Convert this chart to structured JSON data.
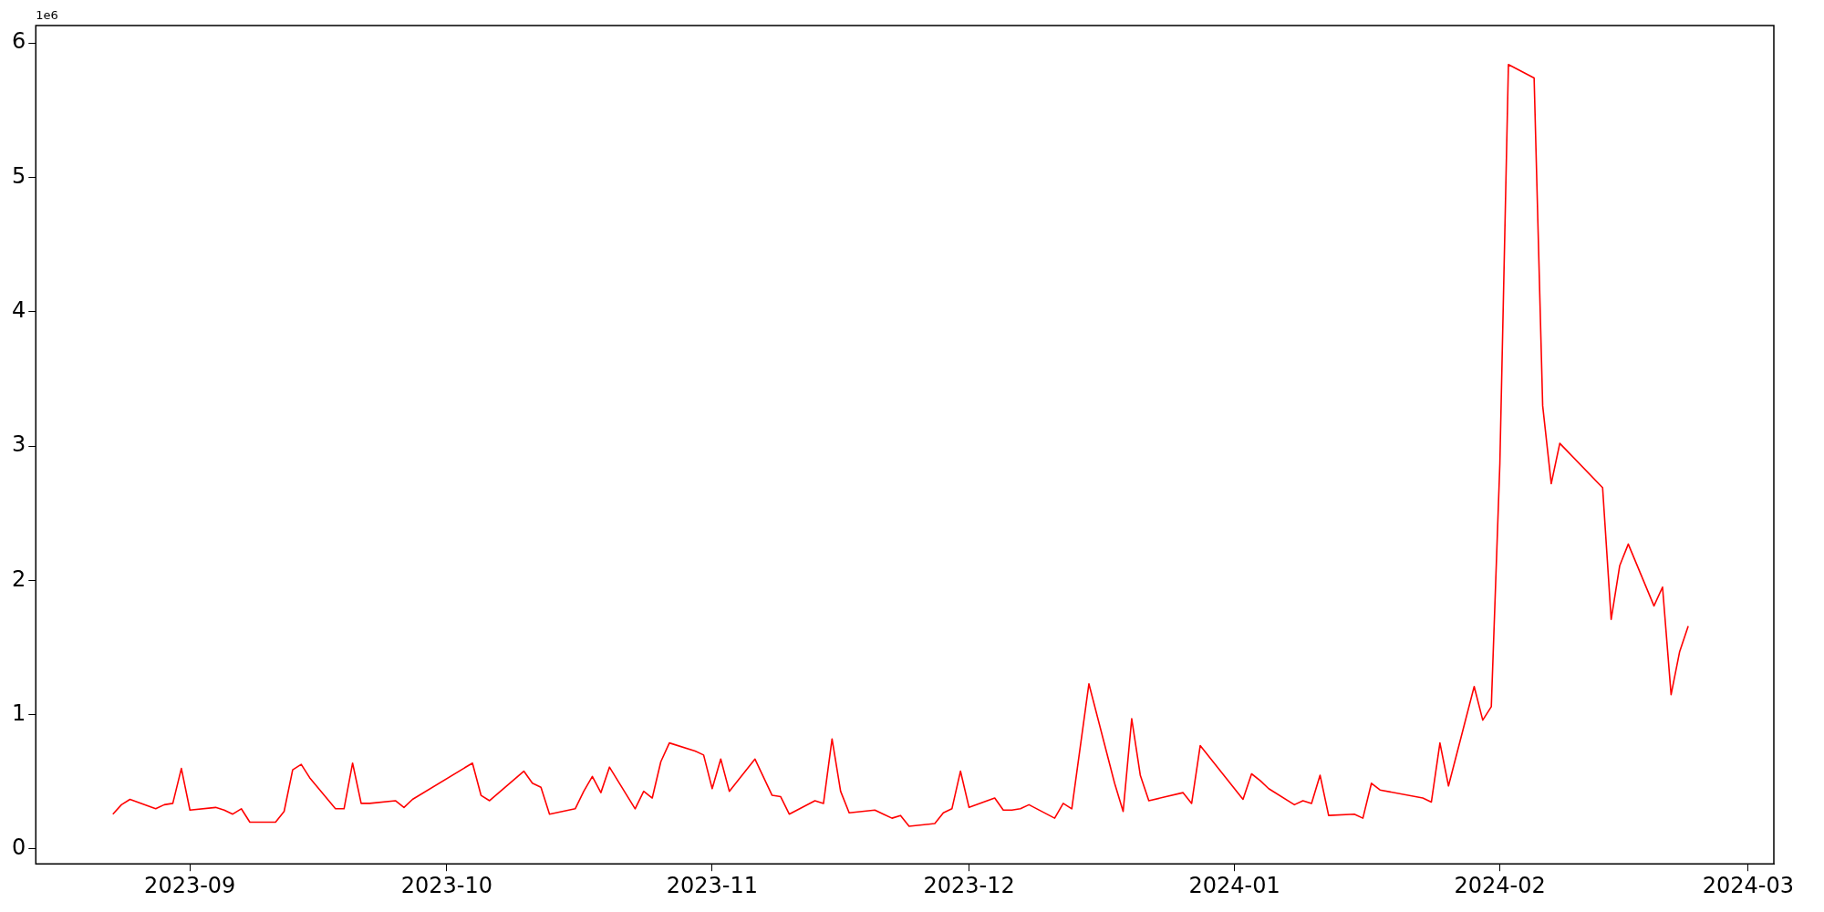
{
  "chart_data": {
    "type": "line",
    "x": [
      "2023-08-23",
      "2023-08-24",
      "2023-08-25",
      "2023-08-28",
      "2023-08-29",
      "2023-08-30",
      "2023-08-31",
      "2023-09-01",
      "2023-09-04",
      "2023-09-05",
      "2023-09-06",
      "2023-09-07",
      "2023-09-08",
      "2023-09-11",
      "2023-09-12",
      "2023-09-13",
      "2023-09-14",
      "2023-09-15",
      "2023-09-18",
      "2023-09-19",
      "2023-09-20",
      "2023-09-21",
      "2023-09-22",
      "2023-09-25",
      "2023-09-26",
      "2023-09-27",
      "2023-10-04",
      "2023-10-05",
      "2023-10-06",
      "2023-10-10",
      "2023-10-11",
      "2023-10-12",
      "2023-10-13",
      "2023-10-16",
      "2023-10-17",
      "2023-10-18",
      "2023-10-19",
      "2023-10-20",
      "2023-10-23",
      "2023-10-24",
      "2023-10-25",
      "2023-10-26",
      "2023-10-27",
      "2023-10-30",
      "2023-10-31",
      "2023-11-01",
      "2023-11-02",
      "2023-11-03",
      "2023-11-06",
      "2023-11-08",
      "2023-11-09",
      "2023-11-10",
      "2023-11-13",
      "2023-11-14",
      "2023-11-15",
      "2023-11-16",
      "2023-11-17",
      "2023-11-20",
      "2023-11-21",
      "2023-11-22",
      "2023-11-23",
      "2023-11-24",
      "2023-11-27",
      "2023-11-28",
      "2023-11-29",
      "2023-11-30",
      "2023-12-01",
      "2023-12-04",
      "2023-12-05",
      "2023-12-06",
      "2023-12-07",
      "2023-12-08",
      "2023-12-11",
      "2023-12-12",
      "2023-12-13",
      "2023-12-15",
      "2023-12-18",
      "2023-12-19",
      "2023-12-20",
      "2023-12-21",
      "2023-12-22",
      "2023-12-26",
      "2023-12-27",
      "2023-12-28",
      "2024-01-02",
      "2024-01-03",
      "2024-01-04",
      "2024-01-05",
      "2024-01-08",
      "2024-01-09",
      "2024-01-10",
      "2024-01-11",
      "2024-01-12",
      "2024-01-15",
      "2024-01-16",
      "2024-01-17",
      "2024-01-18",
      "2024-01-23",
      "2024-01-24",
      "2024-01-25",
      "2024-01-26",
      "2024-01-29",
      "2024-01-30",
      "2024-01-31",
      "2024-02-01",
      "2024-02-02",
      "2024-02-05",
      "2024-02-06",
      "2024-02-07",
      "2024-02-08",
      "2024-02-13",
      "2024-02-14",
      "2024-02-15",
      "2024-02-16",
      "2024-02-19",
      "2024-02-20",
      "2024-02-21",
      "2024-02-22",
      "2024-02-23"
    ],
    "series": [
      {
        "color": "#ff0000",
        "values": [
          0.26,
          0.33,
          0.37,
          0.3,
          0.33,
          0.34,
          0.6,
          0.29,
          0.31,
          0.29,
          0.26,
          0.3,
          0.2,
          0.2,
          0.28,
          0.59,
          0.63,
          0.53,
          0.3,
          0.3,
          0.64,
          0.34,
          0.34,
          0.36,
          0.31,
          0.37,
          0.64,
          0.4,
          0.36,
          0.58,
          0.49,
          0.46,
          0.26,
          0.3,
          0.43,
          0.54,
          0.42,
          0.61,
          0.3,
          0.43,
          0.38,
          0.65,
          0.79,
          0.73,
          0.7,
          0.45,
          0.67,
          0.43,
          0.67,
          0.4,
          0.39,
          0.26,
          0.36,
          0.34,
          0.82,
          0.43,
          0.27,
          0.29,
          0.26,
          0.23,
          0.25,
          0.17,
          0.19,
          0.27,
          0.3,
          0.58,
          0.31,
          0.38,
          0.29,
          0.29,
          0.3,
          0.33,
          0.23,
          0.34,
          0.3,
          1.23,
          0.49,
          0.28,
          0.97,
          0.55,
          0.36,
          0.42,
          0.34,
          0.77,
          0.37,
          0.56,
          0.51,
          0.45,
          0.33,
          0.36,
          0.34,
          0.55,
          0.25,
          0.26,
          0.23,
          0.49,
          0.44,
          0.38,
          0.35,
          0.79,
          0.47,
          1.21,
          0.96,
          1.06,
          2.87,
          5.84,
          5.74,
          3.3,
          2.72,
          3.02,
          2.69,
          1.71,
          2.11,
          2.27,
          1.81,
          1.95,
          1.15,
          1.47,
          1.66
        ]
      }
    ],
    "xlim": [
      "2023-08-14",
      "2024-03-04"
    ],
    "xticks": [
      {
        "value": "2023-09-01",
        "label": "2023-09"
      },
      {
        "value": "2023-10-01",
        "label": "2023-10"
      },
      {
        "value": "2023-11-01",
        "label": "2023-11"
      },
      {
        "value": "2023-12-01",
        "label": "2023-12"
      },
      {
        "value": "2024-01-01",
        "label": "2024-01"
      },
      {
        "value": "2024-02-01",
        "label": "2024-02"
      },
      {
        "value": "2024-03-01",
        "label": "2024-03"
      }
    ],
    "ylim": [
      -0.11,
      6.13
    ],
    "yticks": [
      0,
      1,
      2,
      3,
      4,
      5,
      6
    ],
    "annotations": [
      "1e6"
    ],
    "grid": false,
    "legend": false,
    "marker": "none",
    "line_style": "solid"
  }
}
